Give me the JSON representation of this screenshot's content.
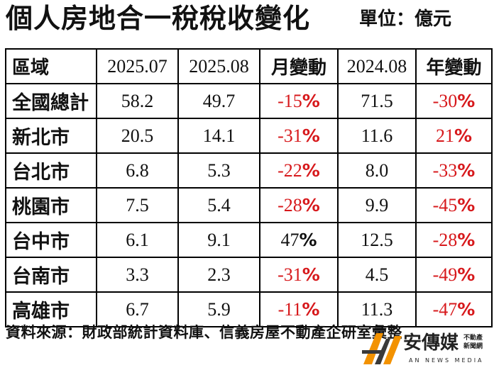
{
  "header": {
    "title": "個人房地合一稅稅收變化",
    "unit": "單位：億元"
  },
  "table": {
    "columns": [
      "區域",
      "2025.07",
      "2025.08",
      "月變動",
      "2024.08",
      "年變動"
    ],
    "rows": [
      {
        "region": "全國總計",
        "jul_2025": "58.2",
        "aug_2025": "49.7",
        "mom": "-15",
        "aug_2024": "71.5",
        "yoy": "-30"
      },
      {
        "region": "新北市",
        "jul_2025": "20.5",
        "aug_2025": "14.1",
        "mom": "-31",
        "aug_2024": "11.6",
        "yoy": "21"
      },
      {
        "region": "台北市",
        "jul_2025": "6.8",
        "aug_2025": "5.3",
        "mom": "-22",
        "aug_2024": "8.0",
        "yoy": "-33"
      },
      {
        "region": "桃園市",
        "jul_2025": "7.5",
        "aug_2025": "5.4",
        "mom": "-28",
        "aug_2024": "9.9",
        "yoy": "-45"
      },
      {
        "region": "台中市",
        "jul_2025": "6.1",
        "aug_2025": "9.1",
        "mom": "47",
        "aug_2024": "12.5",
        "yoy": "-28"
      },
      {
        "region": "台南市",
        "jul_2025": "3.3",
        "aug_2025": "2.3",
        "mom": "-31",
        "aug_2024": "4.5",
        "yoy": "-49"
      },
      {
        "region": "高雄市",
        "jul_2025": "6.7",
        "aug_2025": "5.9",
        "mom": "-11",
        "aug_2024": "11.3",
        "yoy": "-47"
      }
    ],
    "percent_sign": "%",
    "colors": {
      "decrease": "#d7191c",
      "increase_month": "#111111",
      "increase_year": "#d7191c"
    }
  },
  "footer": {
    "source": "資料來源：財政部統計資料庫、信義房屋不動產企研室彙整"
  },
  "logo": {
    "icon": "an-news-logo-icon",
    "brand": "安傳媒",
    "side_line1": "不動產",
    "side_line2": "新聞網",
    "english": "AN NEWS MEDIA",
    "colors": {
      "orange": "#f39200",
      "dark": "#3a3a3a"
    }
  }
}
